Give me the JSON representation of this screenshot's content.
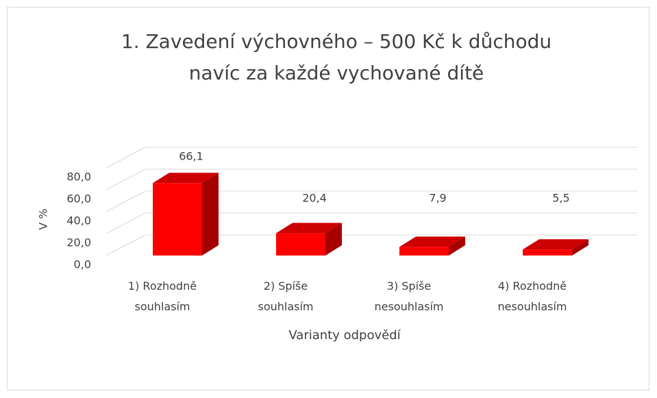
{
  "chart_data": {
    "type": "bar3d",
    "title": [
      "1. Zavedení výchovného – 500 Kč k důchodu",
      "navíc za každé vychované dítě"
    ],
    "x_label": "Varianty odpovědí",
    "y_label": "V %",
    "categories": [
      "1) Rozhodně souhlasím",
      "2) Spíše souhlasím",
      "3) Spíše nesouhlasím",
      "4) Rozhodně nesouhlasím"
    ],
    "values": [
      66.1,
      20.4,
      7.9,
      5.5
    ],
    "value_labels": [
      "66,1",
      "20,4",
      "7,9",
      "5,5"
    ],
    "color": "#ff0000",
    "ylim": [
      0,
      80
    ],
    "yticks": [
      {
        "value": 0,
        "label": "0,0"
      },
      {
        "value": 20,
        "label": "20,0"
      },
      {
        "value": 40,
        "label": "40,0"
      },
      {
        "value": 60,
        "label": "60,0"
      },
      {
        "value": 80,
        "label": "80,0"
      }
    ],
    "grid": true
  }
}
